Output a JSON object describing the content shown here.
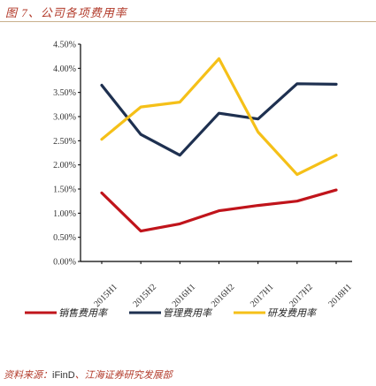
{
  "figure_title": "图 7、公司各项费用率",
  "source_label": "资料来源：",
  "source_name": "iFinD",
  "source_rest": "、江海证券研究发展部",
  "colors": {
    "sales": "#c0141b",
    "admin": "#1e3050",
    "rd": "#f5c018",
    "axis": "#000000",
    "accent": "#b23a2a"
  },
  "chart_data": {
    "type": "line",
    "x": [
      "2015H1",
      "2015H2",
      "2016H1",
      "2016H2",
      "2017H1",
      "2017H2",
      "2018H1"
    ],
    "x_tick_labels": [
      "2015H1",
      "2015H2",
      "2016H1",
      "2016H2",
      "2017H1",
      "2017H2",
      "2018H1"
    ],
    "y_tick_labels": [
      "0.00%",
      "0.50%",
      "1.00%",
      "1.50%",
      "2.00%",
      "2.50%",
      "3.00%",
      "3.50%",
      "4.00%",
      "4.50%"
    ],
    "ylim": [
      0,
      4.5
    ],
    "series": [
      {
        "name": "销售费用率",
        "color": "#c0141b",
        "values": [
          1.42,
          0.63,
          0.78,
          1.05,
          1.16,
          1.25,
          1.48
        ]
      },
      {
        "name": "管理费用率",
        "color": "#1e3050",
        "values": [
          3.65,
          2.63,
          2.2,
          3.07,
          2.95,
          3.68,
          3.67
        ]
      },
      {
        "name": "研发费用率",
        "color": "#f5c018",
        "values": [
          2.53,
          3.2,
          3.3,
          4.2,
          2.68,
          1.8,
          2.2
        ]
      }
    ],
    "legend_position": "bottom"
  }
}
